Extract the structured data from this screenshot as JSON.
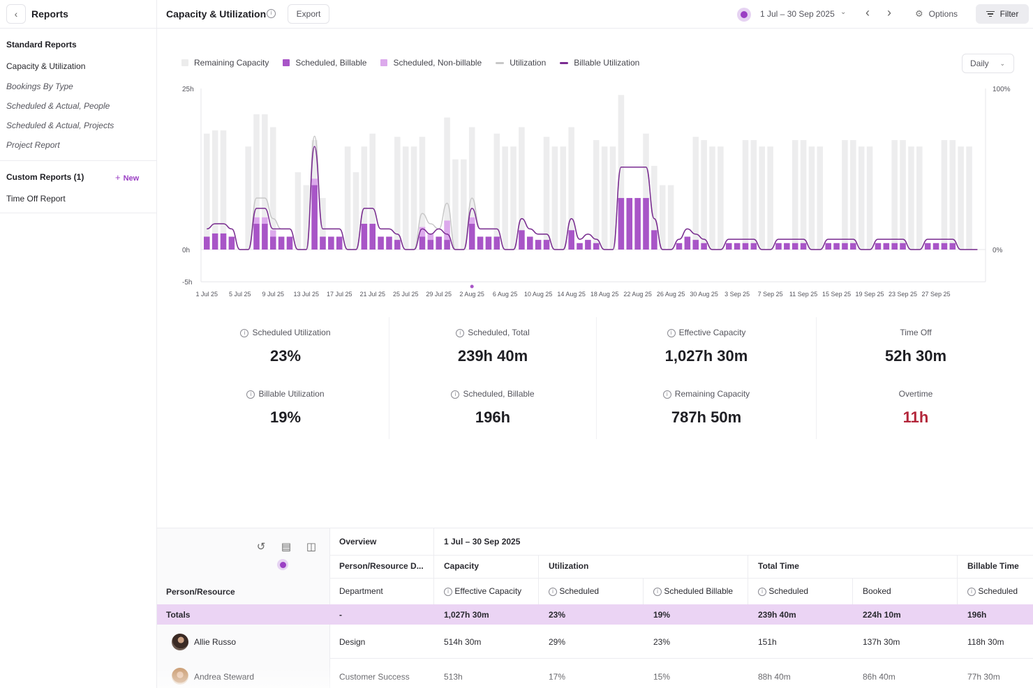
{
  "sidebar": {
    "title": "Reports",
    "standard_heading": "Standard Reports",
    "items": [
      "Capacity & Utilization",
      "Bookings By Type",
      "Scheduled & Actual, People",
      "Scheduled & Actual, Projects",
      "Project Report"
    ],
    "custom_heading": "Custom Reports (1)",
    "new_label": "New",
    "custom_items": [
      "Time Off Report"
    ]
  },
  "header": {
    "title": "Capacity & Utilization",
    "export_label": "Export",
    "date_range": "1 Jul – 30 Sep 2025",
    "options_label": "Options",
    "filter_label": "Filter"
  },
  "legend": [
    {
      "label": "Remaining Capacity",
      "color": "#ececec",
      "kind": "box"
    },
    {
      "label": "Scheduled, Billable",
      "color": "#a855c7",
      "kind": "box"
    },
    {
      "label": "Scheduled, Non-billable",
      "color": "#dca9ec",
      "kind": "box"
    },
    {
      "label": "Utilization",
      "color": "#c8c8c8",
      "kind": "line"
    },
    {
      "label": "Billable Utilization",
      "color": "#7a2c91",
      "kind": "line"
    }
  ],
  "interval_select": "Daily",
  "chart_data": {
    "type": "bar",
    "y_left": {
      "ticks": [
        "25h",
        "0h",
        "-5h"
      ],
      "range": [
        -5,
        25
      ]
    },
    "y_right": {
      "ticks": [
        "100%",
        "0%"
      ]
    },
    "x_tick_labels": [
      "1 Jul 25",
      "5 Jul 25",
      "9 Jul 25",
      "13 Jul 25",
      "17 Jul 25",
      "21 Jul 25",
      "25 Jul 25",
      "29 Jul 25",
      "2 Aug 25",
      "6 Aug 25",
      "10 Aug 25",
      "14 Aug 25",
      "18 Aug 25",
      "22 Aug 25",
      "26 Aug 25",
      "30 Aug 25",
      "3 Sep 25",
      "7 Sep 25",
      "11 Sep 25",
      "15 Sep 25",
      "19 Sep 25",
      "23 Sep 25",
      "27 Sep 25"
    ],
    "series": [
      {
        "name": "Remaining Capacity",
        "values": [
          16,
          16,
          16,
          0,
          0,
          16,
          16,
          16,
          16,
          0,
          0,
          12,
          10,
          6,
          6,
          0,
          0,
          16,
          12,
          12,
          14,
          0,
          0,
          16,
          16,
          16,
          14,
          0,
          0,
          16,
          14,
          14,
          14,
          0,
          0,
          16,
          16,
          16,
          16,
          0,
          0,
          16,
          16,
          16,
          16,
          0,
          0,
          16,
          16,
          16,
          16,
          0,
          0,
          10,
          10,
          10,
          10,
          0,
          0,
          16,
          16,
          16,
          16,
          0,
          0,
          16,
          16,
          16,
          16,
          0,
          0,
          16,
          16,
          16,
          16,
          0,
          0,
          16,
          16,
          16,
          16,
          0,
          0,
          16,
          16,
          16,
          16,
          0,
          0,
          16,
          16,
          16,
          16,
          0
        ]
      },
      {
        "name": "Scheduled, Billable",
        "values": [
          2,
          2.5,
          2.5,
          2,
          0,
          0,
          4,
          4,
          2,
          2,
          2,
          0,
          0,
          10,
          2,
          2,
          2,
          0,
          0,
          4,
          4,
          2,
          2,
          1.5,
          0,
          0,
          2,
          1.5,
          2,
          1.5,
          0,
          0,
          4,
          2,
          2,
          2,
          0,
          0,
          3,
          2,
          1.5,
          1.5,
          0,
          0,
          3,
          1,
          1.5,
          1,
          0,
          0,
          8,
          8,
          8,
          8,
          3,
          0,
          0,
          1,
          2,
          1.5,
          1,
          0,
          0,
          1,
          1,
          1,
          1,
          0,
          0,
          1,
          1,
          1,
          1,
          0,
          0,
          1,
          1,
          1,
          1,
          0,
          0,
          1,
          1,
          1,
          1,
          0,
          0,
          1,
          1,
          1,
          1,
          0,
          0
        ]
      },
      {
        "name": "Scheduled, Non-billable",
        "values": [
          0,
          0,
          0,
          0,
          0,
          0,
          1,
          1,
          1,
          0,
          0,
          0,
          0,
          1,
          0,
          0,
          0,
          0,
          0,
          0,
          0,
          0,
          0,
          0,
          0,
          0,
          1.5,
          1,
          0,
          3,
          0,
          0,
          1,
          0,
          0,
          0,
          0,
          0,
          0,
          0,
          0,
          0,
          0,
          0,
          0,
          0,
          0,
          0,
          0,
          0,
          0,
          0,
          0,
          0,
          0,
          0,
          0,
          0,
          0,
          0,
          0,
          0,
          0,
          0,
          0,
          0,
          0,
          0,
          0,
          0,
          0,
          0,
          0,
          0,
          0,
          0,
          0,
          0,
          0,
          0,
          0,
          0,
          0,
          0,
          0,
          0,
          0,
          0,
          0,
          0,
          0,
          0
        ]
      }
    ]
  },
  "kpis": [
    {
      "label": "Scheduled Utilization",
      "value": "23%",
      "info": true
    },
    {
      "label": "Scheduled, Total",
      "value": "239h 40m",
      "info": true
    },
    {
      "label": "Effective Capacity",
      "value": "1,027h 30m",
      "info": true
    },
    {
      "label": "Time Off",
      "value": "52h 30m",
      "info": false
    },
    {
      "label": "Billable Utilization",
      "value": "19%",
      "info": true
    },
    {
      "label": "Scheduled, Billable",
      "value": "196h",
      "info": true
    },
    {
      "label": "Remaining Capacity",
      "value": "787h 50m",
      "info": true
    },
    {
      "label": "Overtime",
      "value": "11h",
      "info": false
    }
  ],
  "table": {
    "overview_label": "Overview",
    "period_label": "1 Jul – 30 Sep 2025",
    "row_header": "Person/Resource",
    "group_headers": [
      "Person/Resource D...",
      "Capacity",
      "Utilization",
      "Total Time",
      "Billable Time"
    ],
    "sub_headers": [
      "Department",
      "Effective Capacity",
      "Scheduled",
      "Scheduled Billable",
      "Scheduled",
      "Booked",
      "Scheduled"
    ],
    "totals": {
      "label": "Totals",
      "values": [
        "-",
        "1,027h 30m",
        "23%",
        "19%",
        "239h 40m",
        "224h 10m",
        "196h"
      ]
    },
    "rows": [
      {
        "name": "Allie Russo",
        "values": [
          "Design",
          "514h 30m",
          "29%",
          "23%",
          "151h",
          "137h 30m",
          "118h 30m"
        ]
      },
      {
        "name": "Andrea Steward",
        "values": [
          "Customer Success",
          "513h",
          "17%",
          "15%",
          "88h 40m",
          "86h 40m",
          "77h 30m"
        ]
      }
    ]
  }
}
